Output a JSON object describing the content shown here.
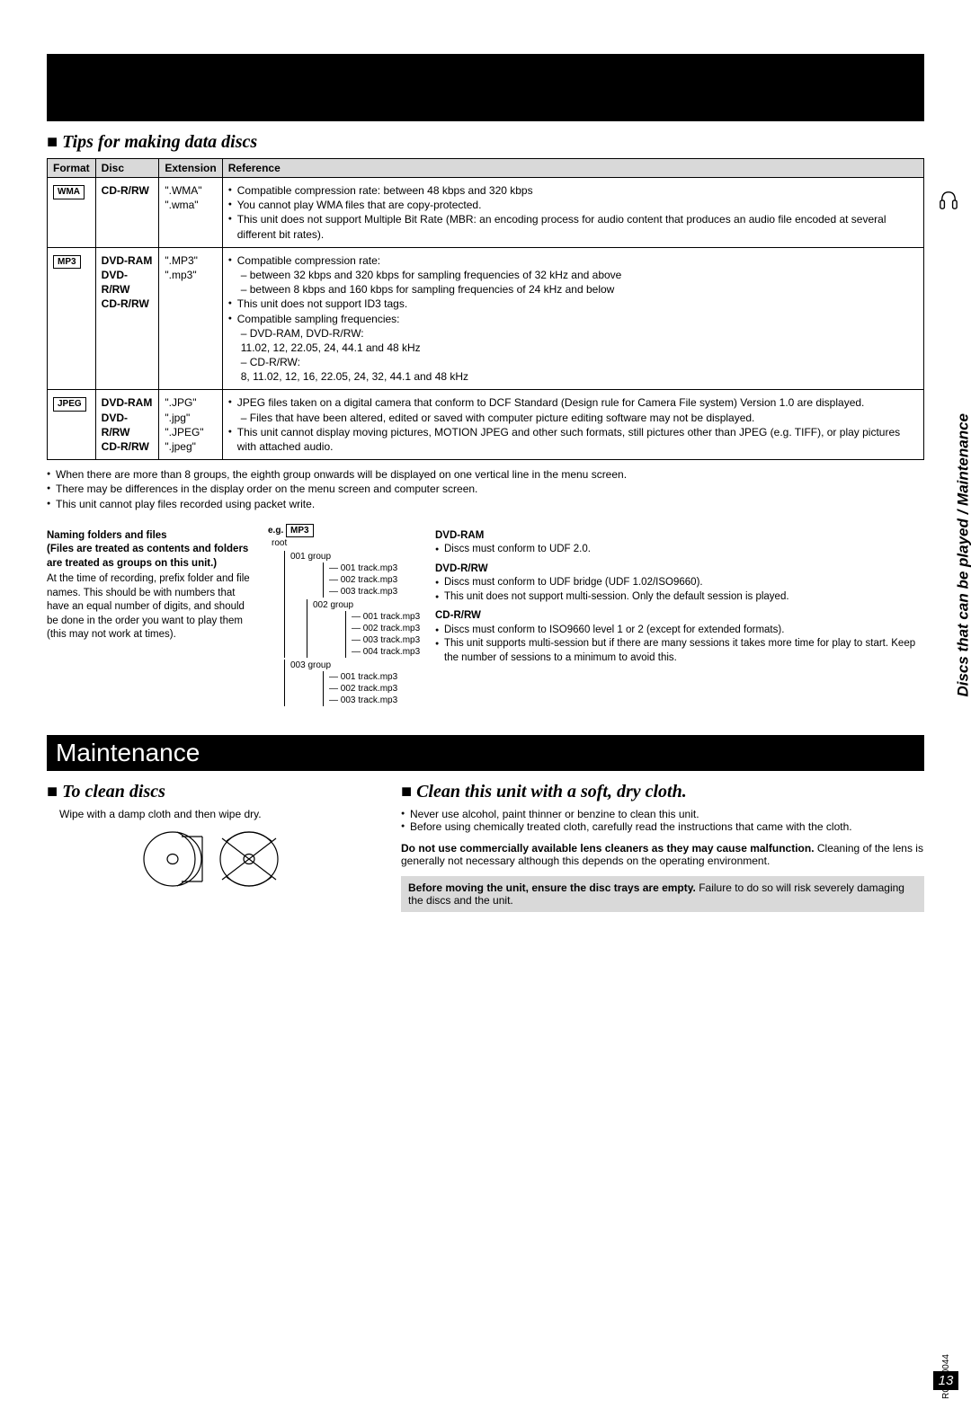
{
  "side_label": "Discs that can be played / Maintenance",
  "doc_id": "RQTX0044",
  "page_number": "13",
  "tips": {
    "title": "Tips for making data discs",
    "columns": [
      "Format",
      "Disc",
      "Extension",
      "Reference"
    ],
    "rows": [
      {
        "format": "WMA",
        "disc": "CD-R/RW",
        "ext": "\".WMA\"\n\".wma\"",
        "ref_items": [
          "Compatible compression rate: between 48 kbps and 320 kbps",
          "You cannot play WMA files that are copy-protected.",
          "This unit does not support Multiple Bit Rate (MBR: an encoding process for audio content that produces an audio file encoded at several different bit rates)."
        ]
      },
      {
        "format": "MP3",
        "disc": "DVD-RAM\nDVD-R/RW\nCD-R/RW",
        "ext": "\".MP3\"\n\".mp3\"",
        "ref_items": [
          "Compatible compression rate:",
          "– between 32 kbps and 320 kbps for sampling frequencies of 32 kHz and above",
          "– between 8 kbps and 160 kbps for sampling frequencies of 24 kHz and below",
          "This unit does not support ID3 tags.",
          "Compatible sampling frequencies:",
          "– DVD-RAM, DVD-R/RW:",
          "  11.02, 12, 22.05, 24, 44.1 and 48 kHz",
          "– CD-R/RW:",
          "  8, 11.02, 12, 16, 22.05, 24, 32, 44.1 and 48 kHz"
        ]
      },
      {
        "format": "JPEG",
        "disc": "DVD-RAM\nDVD-R/RW\nCD-R/RW",
        "ext": "\".JPG\"\n\".jpg\"\n\".JPEG\"\n\".jpeg\"",
        "ref_items": [
          "JPEG files taken on a digital camera that conform to DCF Standard (Design rule for Camera File system) Version 1.0 are displayed.",
          "– Files that have been altered, edited or saved with computer picture editing software may not be displayed.",
          "This unit cannot display moving pictures, MOTION JPEG and other such formats, still pictures other than JPEG (e.g. TIFF), or play pictures with attached audio."
        ]
      }
    ],
    "after_notes": [
      "When there are more than 8 groups, the eighth group onwards will be displayed on one vertical line in the menu screen.",
      "There may be differences in the display order on the menu screen and computer screen.",
      "This unit cannot play files recorded using packet write."
    ],
    "naming_head": "Naming folders and files\n(Files are treated as contents and folders are treated as groups on this unit.)",
    "naming_body": "At the time of recording, prefix folder and file names. This should be with numbers that have an equal number of digits, and should be done in the order you want to play them (this may not work at times).",
    "tree_label_eg": "e.g.",
    "tree_label_mp3": "MP3",
    "tree_root": "root",
    "tree_g1": "001 group",
    "tree_g1_files": [
      "001 track.mp3",
      "002 track.mp3",
      "003 track.mp3"
    ],
    "tree_g2": "002 group",
    "tree_g2_files": [
      "001 track.mp3",
      "002 track.mp3",
      "003 track.mp3",
      "004 track.mp3"
    ],
    "tree_g3": "003 group",
    "tree_g3_files": [
      "001 track.mp3",
      "002 track.mp3",
      "003 track.mp3"
    ],
    "right_sections": {
      "dvdram_h": "DVD-RAM",
      "dvdram_items": [
        "Discs must conform to UDF 2.0."
      ],
      "dvdrrw_h": "DVD-R/RW",
      "dvdrrw_items": [
        "Discs must conform to UDF bridge (UDF 1.02/ISO9660).",
        "This unit does not support multi-session. Only the default session is played."
      ],
      "cdrrw_h": "CD-R/RW",
      "cdrrw_items": [
        "Discs must conform to ISO9660 level 1 or 2 (except for extended formats).",
        "This unit supports multi-session but if there are many sessions it takes more time for play to start. Keep the number of sessions to a minimum to avoid this."
      ]
    }
  },
  "maintenance": {
    "bar": "Maintenance",
    "left_title": "To clean discs",
    "left_body": "Wipe with a damp cloth and then wipe dry.",
    "right_title": "Clean this unit with a soft, dry cloth.",
    "right_items": [
      "Never use alcohol, paint thinner or benzine to clean this unit.",
      "Before using chemically treated cloth, carefully read the instructions that came with the cloth."
    ],
    "right_warning": "Do not use commercially available lens cleaners as they may cause malfunction.",
    "right_warning_cont": " Cleaning of the lens is generally not necessary although this depends on the operating environment.",
    "box_bold": "Before moving the unit, ensure the disc trays are empty.",
    "box_cont": " Failure to do so will risk severely damaging the discs and the unit."
  }
}
